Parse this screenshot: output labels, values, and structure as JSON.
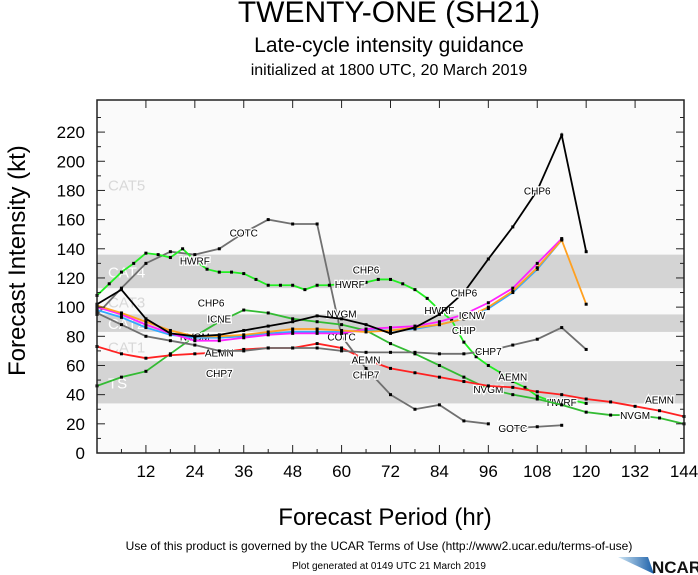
{
  "chart_data": {
    "type": "line",
    "title": "TWENTY-ONE (SH21)",
    "subtitle": "Late-cycle intensity guidance",
    "initialized": "initialized at 1800 UTC, 20 March 2019",
    "xlabel": "Forecast Period (hr)",
    "ylabel": "Forecast Intensity (kt)",
    "xlim": [
      0,
      144
    ],
    "ylim": [
      0,
      242
    ],
    "xticks": [
      12,
      24,
      36,
      48,
      60,
      72,
      84,
      96,
      108,
      120,
      132,
      144
    ],
    "yticks": [
      0,
      20,
      40,
      60,
      80,
      100,
      120,
      140,
      160,
      180,
      200,
      220
    ],
    "grid": false,
    "bands": [
      {
        "label": "TS",
        "range": [
          34,
          63
        ],
        "color": "#d4d4d4"
      },
      {
        "label": "CAT1",
        "range": [
          64,
          82
        ],
        "color": "#fafafa"
      },
      {
        "label": "CAT2",
        "range": [
          83,
          95
        ],
        "color": "#d4d4d4"
      },
      {
        "label": "CAT3",
        "range": [
          96,
          112
        ],
        "color": "#fafafa"
      },
      {
        "label": "CAT4",
        "range": [
          113,
          136
        ],
        "color": "#d4d4d4"
      },
      {
        "label": "CAT5",
        "range": [
          137,
          242
        ],
        "color": "#fafafa"
      }
    ],
    "series": [
      {
        "name": "COTC",
        "color": "#707070",
        "labels_at": [
          36,
          60
        ],
        "x": [
          0,
          6,
          12,
          18,
          24,
          30,
          36,
          42,
          48,
          54,
          60,
          66,
          72,
          78,
          84,
          90,
          96
        ],
        "y": [
          95,
          113,
          130,
          138,
          136,
          140,
          151,
          160,
          157,
          157,
          80,
          58,
          40,
          30,
          33,
          22,
          20
        ]
      },
      {
        "name": "GOTC",
        "color": "#707070",
        "labels_at": [
          102
        ],
        "x": [
          102,
          108,
          114
        ],
        "y": [
          17,
          18,
          19
        ]
      },
      {
        "name": "HWRF",
        "color": "#22ee22",
        "labels_at": [
          24,
          62,
          84,
          114
        ],
        "x": [
          0,
          3,
          6,
          9,
          12,
          15,
          18,
          21,
          24,
          27,
          30,
          33,
          36,
          39,
          42,
          45,
          48,
          51,
          54,
          57,
          60,
          63,
          66,
          69,
          72,
          75,
          78,
          81,
          84,
          87,
          90,
          93,
          96,
          99,
          102,
          105,
          108,
          111,
          114,
          117,
          120
        ],
        "y": [
          108,
          116,
          124,
          130,
          137,
          136,
          134,
          140,
          132,
          126,
          124,
          124,
          123,
          119,
          115,
          115,
          115,
          112,
          115,
          115,
          116,
          116,
          117,
          119,
          119,
          116,
          112,
          106,
          98,
          91,
          76,
          66,
          60,
          55,
          49,
          45,
          39,
          36,
          35,
          36,
          34
        ]
      },
      {
        "name": "NVGM",
        "color": "#33bb33",
        "labels_at": [
          24,
          60,
          96,
          132
        ],
        "x": [
          0,
          6,
          12,
          18,
          24,
          30,
          36,
          42,
          48,
          54,
          60,
          66,
          72,
          78,
          84,
          90,
          96,
          102,
          108,
          114,
          120,
          126,
          132,
          138,
          144
        ],
        "y": [
          46,
          52,
          56,
          68,
          80,
          90,
          98,
          96,
          92,
          90,
          88,
          84,
          75,
          68,
          60,
          52,
          44,
          40,
          37,
          33,
          28,
          26,
          26,
          24,
          20
        ]
      },
      {
        "name": "AEMN",
        "color": "#ff2222",
        "labels_at": [
          30,
          66,
          102,
          138
        ],
        "x": [
          0,
          6,
          12,
          18,
          24,
          30,
          36,
          42,
          48,
          54,
          60,
          66,
          72,
          78,
          84,
          90,
          96,
          102,
          108,
          114,
          120,
          126,
          132,
          138,
          144
        ],
        "y": [
          73,
          68,
          65,
          67,
          68,
          69,
          71,
          72,
          72,
          75,
          72,
          64,
          58,
          55,
          52,
          49,
          46,
          45,
          42,
          40,
          37,
          35,
          32,
          29,
          25
        ]
      },
      {
        "name": "CHP7",
        "color": "#707070",
        "labels_at": [
          30,
          66,
          96
        ],
        "x": [
          0,
          6,
          12,
          18,
          24,
          30,
          36,
          42,
          48,
          54,
          60,
          66,
          72,
          78,
          84,
          90,
          96,
          102,
          108,
          114,
          120
        ],
        "y": [
          96,
          88,
          80,
          77,
          74,
          70,
          70,
          72,
          72,
          72,
          70,
          69,
          69,
          69,
          68,
          68,
          70,
          74,
          78,
          86,
          71
        ]
      },
      {
        "name": "CHIP",
        "color": "#33aaff",
        "labels_at": [
          90
        ],
        "x": [
          0,
          6,
          12,
          18,
          24,
          30,
          36,
          42,
          48,
          54,
          60,
          66,
          72,
          78,
          84,
          90,
          96,
          102,
          108,
          114
        ],
        "y": [
          98,
          93,
          86,
          81,
          79,
          79,
          80,
          82,
          83,
          83,
          83,
          84,
          84,
          85,
          88,
          92,
          99,
          110,
          126,
          146
        ]
      },
      {
        "name": "ICNE",
        "color": "#ff22ff",
        "labels_at": [
          30
        ],
        "x": [
          0,
          6,
          12,
          18,
          24,
          30,
          36,
          42,
          48,
          54,
          60,
          66,
          72,
          78,
          84,
          90,
          96,
          102,
          108,
          114
        ],
        "y": [
          100,
          95,
          88,
          82,
          77,
          77,
          79,
          81,
          82,
          82,
          82,
          85,
          86,
          87,
          90,
          95,
          103,
          113,
          130,
          147
        ]
      },
      {
        "name": "ICNW",
        "color": "#ffa020",
        "labels_at": [
          92
        ],
        "x": [
          0,
          6,
          12,
          18,
          24,
          30,
          36,
          42,
          48,
          54,
          60,
          66,
          72,
          78,
          84,
          90,
          96,
          102,
          108,
          114,
          120
        ],
        "y": [
          101,
          96,
          90,
          84,
          80,
          80,
          81,
          83,
          85,
          85,
          84,
          83,
          84,
          86,
          88,
          92,
          100,
          111,
          127,
          146,
          102
        ]
      },
      {
        "name": "CHP6",
        "color": "#000000",
        "labels_at": [
          28,
          66,
          90,
          108
        ],
        "x": [
          0,
          6,
          12,
          18,
          24,
          30,
          36,
          42,
          48,
          54,
          60,
          66,
          72,
          78,
          84,
          90,
          96,
          102,
          108,
          114,
          120
        ],
        "y": [
          102,
          112,
          92,
          82,
          80,
          81,
          84,
          87,
          90,
          94,
          92,
          88,
          82,
          86,
          95,
          110,
          133,
          155,
          180,
          218,
          138
        ]
      }
    ]
  },
  "footer": {
    "terms": "Use of this product is governed by the UCAR Terms of Use (http://www2.ucar.edu/terms-of-use)",
    "generated": "Plot generated at 0149 UTC   21 March 2019",
    "logo": "NCAR"
  }
}
